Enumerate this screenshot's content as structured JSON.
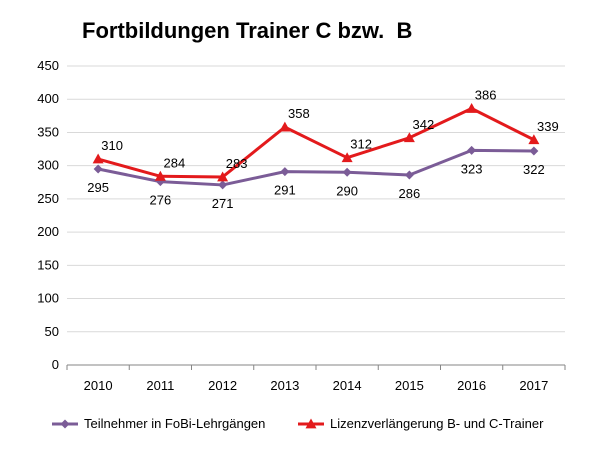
{
  "chart_data": {
    "type": "line",
    "title": "Fortbildungen Trainer C bzw.  B",
    "xlabel": "",
    "ylabel": "",
    "categories": [
      "2010",
      "2011",
      "2012",
      "2013",
      "2014",
      "2015",
      "2016",
      "2017"
    ],
    "ylim": [
      0,
      450
    ],
    "yticks": [
      0,
      50,
      100,
      150,
      200,
      250,
      300,
      350,
      400,
      450
    ],
    "grid": true,
    "legend_position": "bottom",
    "series": [
      {
        "name": "Teilnehmer in FoBi-Lehrgängen",
        "values": [
          295,
          276,
          271,
          291,
          290,
          286,
          323,
          322
        ],
        "labels": [
          "295",
          "276",
          "271",
          "291",
          "290",
          "286",
          "323",
          "322"
        ],
        "color": "#7b5c97",
        "marker": "diamond",
        "label_position": "below"
      },
      {
        "name": "Lizenzverlängerung B- und C-Trainer",
        "values": [
          310,
          284,
          283,
          358,
          312,
          342,
          386,
          339
        ],
        "labels": [
          "310",
          "284",
          "283",
          "358",
          "312",
          "342",
          "386",
          "339"
        ],
        "color": "#e31a1c",
        "marker": "triangle",
        "label_position": "above"
      }
    ]
  }
}
